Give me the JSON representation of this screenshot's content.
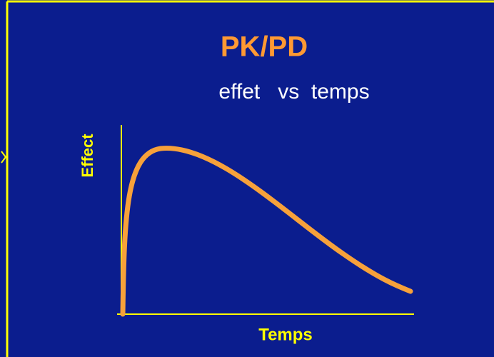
{
  "title": "PK/PD",
  "subtitle": "effet   vs  temps",
  "y_label": "Effect",
  "x_label": "Temps"
}
